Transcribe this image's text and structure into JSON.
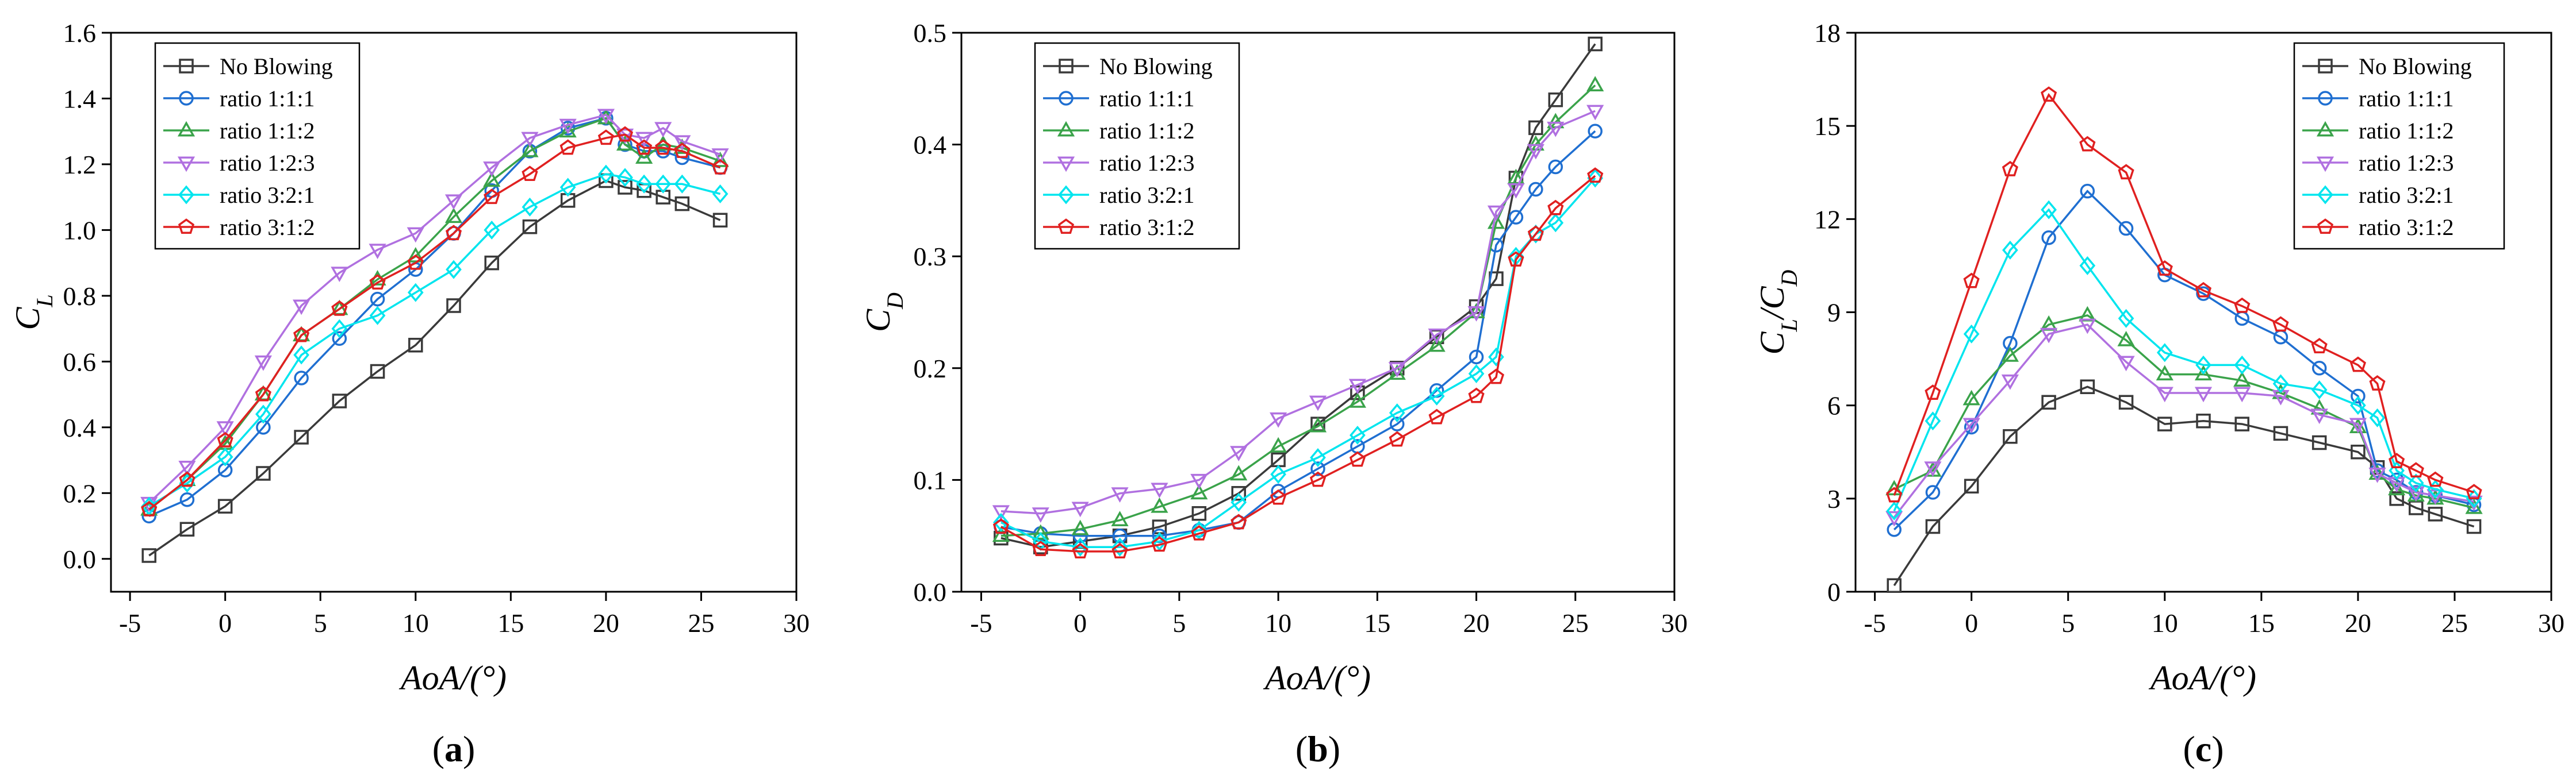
{
  "legend_labels": [
    "No Blowing",
    "ratio 1:1:1",
    "ratio 1:1:2",
    "ratio 1:2:3",
    "ratio 3:2:1",
    "ratio 3:1:2"
  ],
  "series_styles": [
    {
      "color": "#3a3a3a",
      "marker": "square"
    },
    {
      "color": "#1f6fd1",
      "marker": "circle"
    },
    {
      "color": "#3aa34a",
      "marker": "triangle-up"
    },
    {
      "color": "#b070e0",
      "marker": "triangle-down"
    },
    {
      "color": "#00e5ee",
      "marker": "diamond"
    },
    {
      "color": "#e02020",
      "marker": "pentagon"
    }
  ],
  "chart_data": [
    {
      "type": "line",
      "panel_label": "(a)",
      "panel_letter": "a",
      "xlabel": "AoA/(°)",
      "ylabel": "C_L",
      "xlim": [
        -6,
        30
      ],
      "ylim": [
        -0.1,
        1.6
      ],
      "xticks": [
        -5,
        0,
        5,
        10,
        15,
        20,
        25,
        30
      ],
      "yticks": [
        0.0,
        0.2,
        0.4,
        0.6,
        0.8,
        1.0,
        1.2,
        1.4,
        1.6
      ],
      "ytick_decimals": 1,
      "legend_position": "top-left",
      "x": [
        -4,
        -2,
        0,
        2,
        4,
        6,
        8,
        10,
        12,
        14,
        16,
        18,
        20,
        21,
        22,
        23,
        24,
        26
      ],
      "series": [
        {
          "name": "No Blowing",
          "values": [
            0.01,
            0.09,
            0.16,
            0.26,
            0.37,
            0.48,
            0.57,
            0.65,
            0.77,
            0.9,
            1.01,
            1.09,
            1.15,
            1.13,
            1.12,
            1.1,
            1.08,
            1.03
          ]
        },
        {
          "name": "ratio 1:1:1",
          "values": [
            0.13,
            0.18,
            0.27,
            0.4,
            0.55,
            0.67,
            0.79,
            0.88,
            0.99,
            1.12,
            1.24,
            1.31,
            1.34,
            1.26,
            1.24,
            1.24,
            1.22,
            1.19
          ]
        },
        {
          "name": "ratio 1:1:2",
          "values": [
            0.15,
            0.24,
            0.35,
            0.5,
            0.68,
            0.76,
            0.85,
            0.92,
            1.04,
            1.15,
            1.24,
            1.3,
            1.34,
            1.26,
            1.22,
            1.26,
            1.25,
            1.21
          ]
        },
        {
          "name": "ratio 1:2:3",
          "values": [
            0.17,
            0.28,
            0.4,
            0.6,
            0.77,
            0.87,
            0.94,
            0.99,
            1.09,
            1.19,
            1.28,
            1.32,
            1.35,
            1.29,
            1.28,
            1.31,
            1.27,
            1.23
          ]
        },
        {
          "name": "ratio 3:2:1",
          "values": [
            0.16,
            0.23,
            0.31,
            0.44,
            0.62,
            0.7,
            0.74,
            0.81,
            0.88,
            1.0,
            1.07,
            1.13,
            1.17,
            1.16,
            1.14,
            1.14,
            1.14,
            1.11
          ]
        },
        {
          "name": "ratio 3:1:2",
          "values": [
            0.15,
            0.24,
            0.36,
            0.5,
            0.68,
            0.76,
            0.84,
            0.9,
            0.99,
            1.1,
            1.17,
            1.25,
            1.28,
            1.29,
            1.25,
            1.25,
            1.24,
            1.19
          ]
        }
      ]
    },
    {
      "type": "line",
      "panel_label": "(b)",
      "panel_letter": "b",
      "xlabel": "AoA/(°)",
      "ylabel": "C_D",
      "xlim": [
        -6,
        30
      ],
      "ylim": [
        0.0,
        0.5
      ],
      "xticks": [
        -5,
        0,
        5,
        10,
        15,
        20,
        25,
        30
      ],
      "yticks": [
        0.0,
        0.1,
        0.2,
        0.3,
        0.4,
        0.5
      ],
      "ytick_decimals": 1,
      "legend_position": "top-left",
      "x": [
        -4,
        -2,
        0,
        2,
        4,
        6,
        8,
        10,
        12,
        14,
        16,
        18,
        20,
        21,
        22,
        23,
        24,
        26
      ],
      "series": [
        {
          "name": "No Blowing",
          "values": [
            0.048,
            0.04,
            0.045,
            0.05,
            0.058,
            0.07,
            0.088,
            0.118,
            0.15,
            0.178,
            0.2,
            0.228,
            0.255,
            0.28,
            0.37,
            0.415,
            0.44,
            0.49
          ]
        },
        {
          "name": "ratio 1:1:1",
          "values": [
            0.058,
            0.052,
            0.05,
            0.05,
            0.05,
            0.055,
            0.062,
            0.09,
            0.11,
            0.13,
            0.15,
            0.18,
            0.21,
            0.31,
            0.335,
            0.36,
            0.38,
            0.412
          ]
        },
        {
          "name": "ratio 1:1:2",
          "values": [
            0.05,
            0.052,
            0.056,
            0.064,
            0.076,
            0.088,
            0.105,
            0.13,
            0.148,
            0.17,
            0.195,
            0.22,
            0.25,
            0.33,
            0.37,
            0.4,
            0.42,
            0.453
          ]
        },
        {
          "name": "ratio 1:2:3",
          "values": [
            0.072,
            0.07,
            0.075,
            0.088,
            0.092,
            0.1,
            0.125,
            0.155,
            0.17,
            0.185,
            0.2,
            0.23,
            0.25,
            0.34,
            0.36,
            0.395,
            0.415,
            0.43
          ]
        },
        {
          "name": "ratio 3:2:1",
          "values": [
            0.062,
            0.045,
            0.04,
            0.04,
            0.045,
            0.055,
            0.08,
            0.105,
            0.12,
            0.14,
            0.16,
            0.175,
            0.195,
            0.21,
            0.3,
            0.32,
            0.33,
            0.37
          ]
        },
        {
          "name": "ratio 3:1:2",
          "values": [
            0.058,
            0.038,
            0.036,
            0.036,
            0.042,
            0.052,
            0.062,
            0.084,
            0.1,
            0.118,
            0.136,
            0.156,
            0.175,
            0.192,
            0.297,
            0.32,
            0.343,
            0.372
          ]
        }
      ]
    },
    {
      "type": "line",
      "panel_label": "(c)",
      "panel_letter": "c",
      "xlabel": "AoA/(°)",
      "ylabel": "C_L/C_D",
      "xlim": [
        -6,
        30
      ],
      "ylim": [
        0,
        18
      ],
      "xticks": [
        -5,
        0,
        5,
        10,
        15,
        20,
        25,
        30
      ],
      "yticks": [
        0,
        3,
        6,
        9,
        12,
        15,
        18
      ],
      "ytick_decimals": 0,
      "legend_position": "top-right",
      "x": [
        -4,
        -2,
        0,
        2,
        4,
        6,
        8,
        10,
        12,
        14,
        16,
        18,
        20,
        21,
        22,
        23,
        24,
        26
      ],
      "series": [
        {
          "name": "No Blowing",
          "values": [
            0.2,
            2.1,
            3.4,
            5.0,
            6.1,
            6.6,
            6.1,
            5.4,
            5.5,
            5.4,
            5.1,
            4.8,
            4.5,
            4.0,
            3.0,
            2.7,
            2.5,
            2.1
          ]
        },
        {
          "name": "ratio 1:1:1",
          "values": [
            2.0,
            3.2,
            5.3,
            8.0,
            11.4,
            12.9,
            11.7,
            10.2,
            9.6,
            8.8,
            8.2,
            7.2,
            6.3,
            3.9,
            3.6,
            3.2,
            3.1,
            2.8
          ]
        },
        {
          "name": "ratio 1:1:2",
          "values": [
            3.3,
            3.9,
            6.2,
            7.6,
            8.6,
            8.9,
            8.1,
            7.0,
            7.0,
            6.8,
            6.4,
            5.9,
            5.3,
            3.8,
            3.3,
            3.1,
            3.0,
            2.7
          ]
        },
        {
          "name": "ratio 1:2:3",
          "values": [
            2.4,
            4.0,
            5.4,
            6.8,
            8.3,
            8.6,
            7.4,
            6.4,
            6.4,
            6.4,
            6.3,
            5.7,
            5.4,
            3.8,
            3.5,
            3.2,
            3.1,
            2.9
          ]
        },
        {
          "name": "ratio 3:2:1",
          "values": [
            2.6,
            5.5,
            8.3,
            11.0,
            12.3,
            10.5,
            8.8,
            7.7,
            7.3,
            7.3,
            6.7,
            6.5,
            6.0,
            5.6,
            3.9,
            3.5,
            3.3,
            3.0
          ]
        },
        {
          "name": "ratio 3:1:2",
          "values": [
            3.1,
            6.4,
            10.0,
            13.6,
            16.0,
            14.4,
            13.5,
            10.4,
            9.7,
            9.2,
            8.6,
            7.9,
            7.3,
            6.7,
            4.2,
            3.9,
            3.6,
            3.2
          ]
        }
      ]
    }
  ]
}
